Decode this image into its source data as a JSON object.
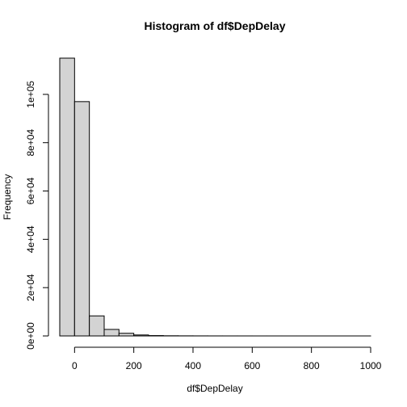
{
  "chart_data": {
    "type": "bar",
    "title": "Histogram of df$DepDelay",
    "xlabel": "df$DepDelay",
    "ylabel": "Frequency",
    "bin_width": 50,
    "bins": [
      {
        "start": -50,
        "end": 0,
        "count": 115000
      },
      {
        "start": 0,
        "end": 50,
        "count": 97000
      },
      {
        "start": 50,
        "end": 100,
        "count": 8300
      },
      {
        "start": 100,
        "end": 150,
        "count": 2700
      },
      {
        "start": 150,
        "end": 200,
        "count": 1100
      },
      {
        "start": 200,
        "end": 250,
        "count": 400
      },
      {
        "start": 250,
        "end": 300,
        "count": 150
      },
      {
        "start": 300,
        "end": 350,
        "count": 70
      },
      {
        "start": 350,
        "end": 400,
        "count": 40
      },
      {
        "start": 400,
        "end": 450,
        "count": 25
      },
      {
        "start": 450,
        "end": 500,
        "count": 15
      },
      {
        "start": 500,
        "end": 550,
        "count": 10
      },
      {
        "start": 550,
        "end": 600,
        "count": 8
      },
      {
        "start": 600,
        "end": 650,
        "count": 5
      },
      {
        "start": 650,
        "end": 700,
        "count": 4
      },
      {
        "start": 700,
        "end": 750,
        "count": 3
      },
      {
        "start": 750,
        "end": 800,
        "count": 2
      },
      {
        "start": 800,
        "end": 850,
        "count": 2
      },
      {
        "start": 850,
        "end": 900,
        "count": 1
      },
      {
        "start": 900,
        "end": 950,
        "count": 1
      },
      {
        "start": 950,
        "end": 1000,
        "count": 1
      }
    ],
    "xlim": [
      -50,
      1000
    ],
    "ylim": [
      0,
      115000
    ],
    "x_ticks": [
      0,
      200,
      400,
      600,
      800,
      1000
    ],
    "x_tick_labels": [
      "0",
      "200",
      "400",
      "600",
      "800",
      "1000"
    ],
    "y_ticks": [
      0,
      20000,
      40000,
      60000,
      80000,
      100000
    ],
    "y_tick_labels": [
      "0e+00",
      "2e+04",
      "4e+04",
      "6e+04",
      "8e+04",
      "1e+05"
    ],
    "bar_fill": "#d3d3d3",
    "bar_stroke": "#000000",
    "grid": false
  }
}
